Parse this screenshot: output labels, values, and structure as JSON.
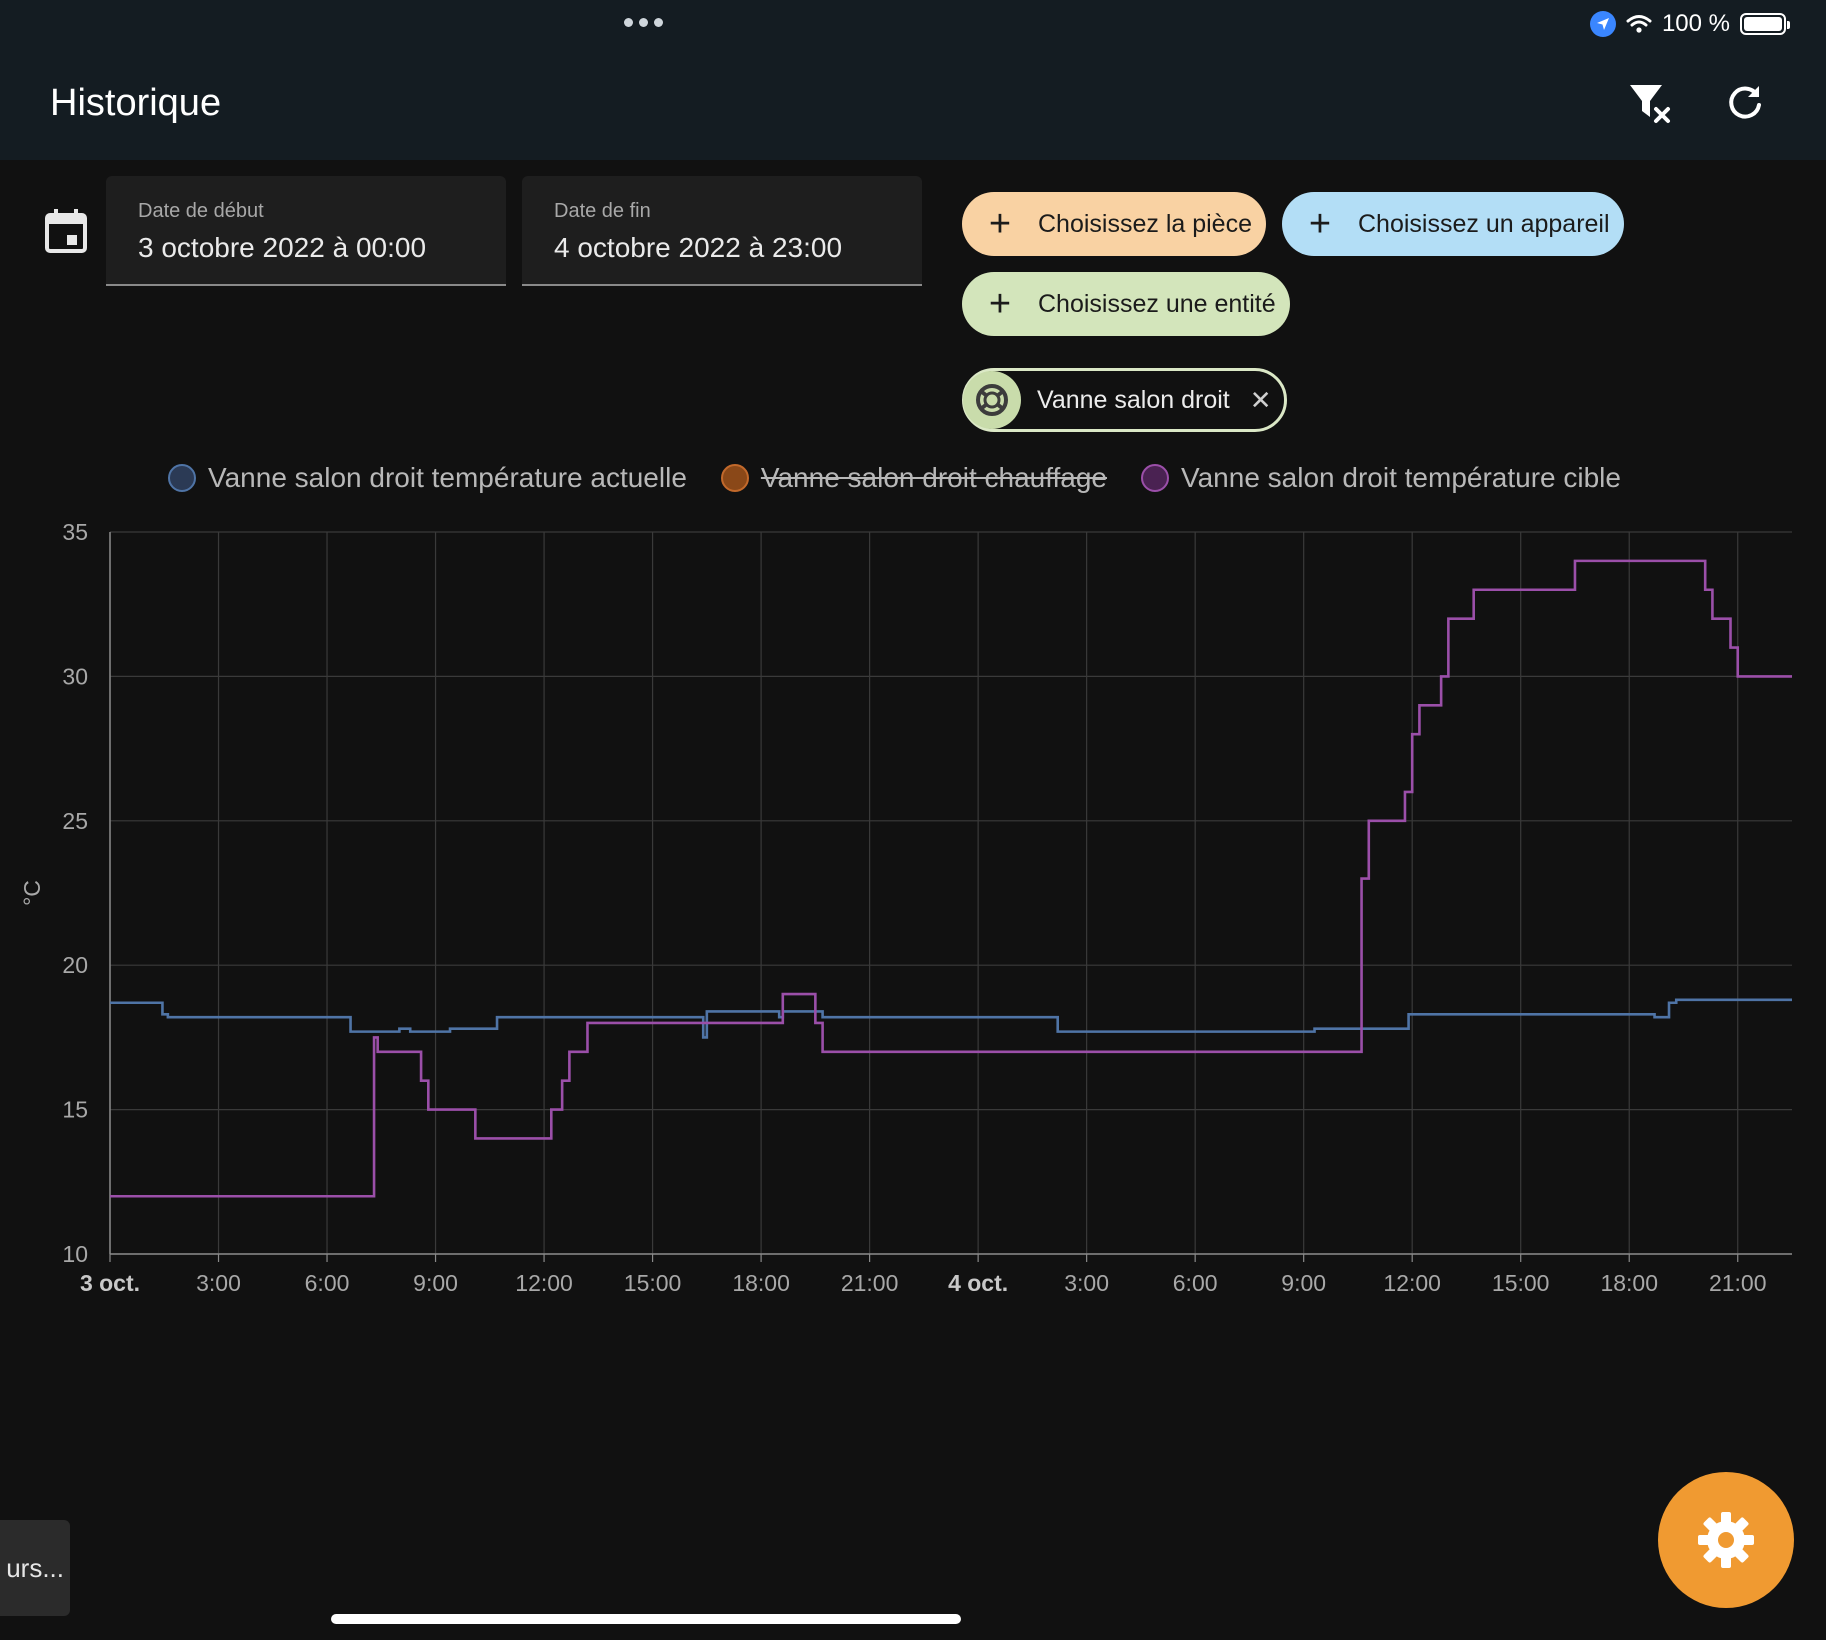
{
  "status": {
    "battery": "100 %"
  },
  "header": {
    "title": "Historique"
  },
  "dates": {
    "start_label": "Date de début",
    "start_value": "3 octobre 2022 à 00:00",
    "end_label": "Date de fin",
    "end_value": "4 octobre 2022 à 23:00"
  },
  "targets": {
    "room_label": "Choisissez la pièce",
    "device_label": "Choisissez un appareil",
    "entity_label": "Choisissez une entité",
    "selected_entity": "Vanne salon droit"
  },
  "toast": {
    "text": "urs..."
  },
  "colors": {
    "accent": "#f09a31",
    "room_chip": "#f9d2a3",
    "device_chip": "#b3def6",
    "entity_chip": "#d3e5bb",
    "series_actual": "#4f74a6",
    "series_heating": "#c2692b",
    "series_target": "#9b4fa9"
  },
  "chart_data": {
    "type": "line",
    "step": true,
    "ylabel": "°C",
    "ylim": [
      10,
      35
    ],
    "yticks": [
      10,
      15,
      20,
      25,
      30,
      35
    ],
    "xlim": [
      0,
      46.5
    ],
    "xtick_labels": [
      {
        "h": 0,
        "label": "3 oct.",
        "bold": true
      },
      {
        "h": 3,
        "label": "3:00"
      },
      {
        "h": 6,
        "label": "6:00"
      },
      {
        "h": 9,
        "label": "9:00"
      },
      {
        "h": 12,
        "label": "12:00"
      },
      {
        "h": 15,
        "label": "15:00"
      },
      {
        "h": 18,
        "label": "18:00"
      },
      {
        "h": 21,
        "label": "21:00"
      },
      {
        "h": 24,
        "label": "4 oct.",
        "bold": true
      },
      {
        "h": 27,
        "label": "3:00"
      },
      {
        "h": 30,
        "label": "6:00"
      },
      {
        "h": 33,
        "label": "9:00"
      },
      {
        "h": 36,
        "label": "12:00"
      },
      {
        "h": 39,
        "label": "15:00"
      },
      {
        "h": 42,
        "label": "18:00"
      },
      {
        "h": 45,
        "label": "21:00"
      }
    ],
    "grid": true,
    "legend_position": "top",
    "series": [
      {
        "name": "Vanne salon droit température actuelle",
        "hidden": false,
        "points": [
          [
            0,
            18.7
          ],
          [
            1.45,
            18.3
          ],
          [
            1.6,
            18.2
          ],
          [
            6.65,
            17.7
          ],
          [
            8.0,
            17.8
          ],
          [
            8.3,
            17.7
          ],
          [
            9.4,
            17.8
          ],
          [
            10.7,
            18.2
          ],
          [
            16.4,
            17.5
          ],
          [
            16.5,
            18.4
          ],
          [
            18.5,
            18.2
          ],
          [
            18.6,
            18.4
          ],
          [
            19.7,
            18.2
          ],
          [
            26.2,
            17.7
          ],
          [
            33.3,
            17.8
          ],
          [
            35.9,
            18.3
          ],
          [
            42.7,
            18.2
          ],
          [
            43.1,
            18.7
          ],
          [
            43.3,
            18.8
          ],
          [
            46.5,
            18.8
          ]
        ]
      },
      {
        "name": "Vanne salon droit chauffage",
        "hidden": true,
        "points": []
      },
      {
        "name": "Vanne salon droit température cible",
        "hidden": false,
        "points": [
          [
            0,
            12
          ],
          [
            7.3,
            17.5
          ],
          [
            7.4,
            17
          ],
          [
            8.6,
            16
          ],
          [
            8.8,
            15
          ],
          [
            10.1,
            14
          ],
          [
            12.2,
            15
          ],
          [
            12.5,
            16
          ],
          [
            12.7,
            17
          ],
          [
            13.2,
            18
          ],
          [
            18.6,
            19
          ],
          [
            19.5,
            18
          ],
          [
            19.7,
            17
          ],
          [
            34.6,
            23
          ],
          [
            34.8,
            25
          ],
          [
            35.8,
            26
          ],
          [
            36.0,
            28
          ],
          [
            36.2,
            29
          ],
          [
            36.8,
            30
          ],
          [
            37.0,
            32
          ],
          [
            37.7,
            33
          ],
          [
            40.5,
            34
          ],
          [
            44.1,
            33
          ],
          [
            44.3,
            32
          ],
          [
            44.8,
            31
          ],
          [
            45.0,
            30
          ],
          [
            46.5,
            30
          ]
        ]
      }
    ]
  }
}
